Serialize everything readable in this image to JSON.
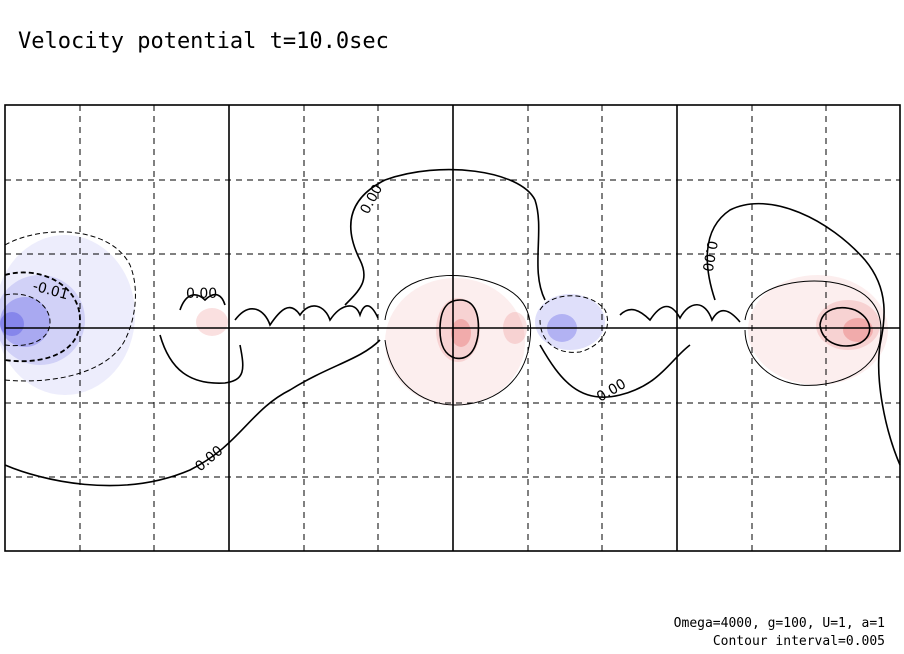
{
  "chart_data": {
    "type": "contour",
    "title": "Velocity potential t=10.0sec",
    "contour_labels": [
      "0.00",
      "-0.01",
      "0.00",
      "0.00",
      "0.00",
      "0.00"
    ],
    "annotations": [
      "Omega=4000, g=100, U=1, a=1",
      "Contour interval=0.005"
    ],
    "colors": {
      "negative": "#6f6fe8",
      "positive": "#e87070"
    }
  }
}
